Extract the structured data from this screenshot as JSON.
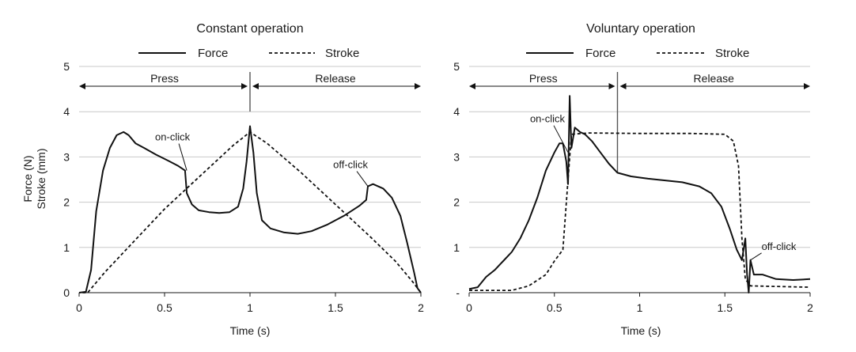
{
  "chart_data": [
    {
      "type": "line",
      "title": "Constant operation",
      "xlabel": "Time (s)",
      "ylabel": [
        "Force (N)",
        "Stroke (mm)"
      ],
      "xlim": [
        0,
        2
      ],
      "ylim": [
        0,
        5
      ],
      "x_ticks": [
        "0",
        "0.5",
        "1",
        "1.5",
        "2"
      ],
      "y_ticks": [
        "0",
        "1",
        "2",
        "3",
        "4",
        "5"
      ],
      "grid": true,
      "legend_position": "top",
      "legend": [
        {
          "label": "Force",
          "style": "solid"
        },
        {
          "label": "Stroke",
          "style": "dashed"
        }
      ],
      "phases": {
        "press_label": "Press",
        "release_label": "Release",
        "start": 0,
        "divider": 1.0,
        "end": 2
      },
      "series": [
        {
          "name": "Force",
          "style": "solid",
          "points": [
            [
              0,
              0
            ],
            [
              0.04,
              0.02
            ],
            [
              0.07,
              0.5
            ],
            [
              0.1,
              1.8
            ],
            [
              0.14,
              2.7
            ],
            [
              0.18,
              3.2
            ],
            [
              0.22,
              3.48
            ],
            [
              0.26,
              3.55
            ],
            [
              0.29,
              3.48
            ],
            [
              0.33,
              3.3
            ],
            [
              0.38,
              3.2
            ],
            [
              0.45,
              3.05
            ],
            [
              0.52,
              2.92
            ],
            [
              0.58,
              2.8
            ],
            [
              0.62,
              2.7
            ],
            [
              0.63,
              2.2
            ],
            [
              0.66,
              1.95
            ],
            [
              0.7,
              1.82
            ],
            [
              0.76,
              1.78
            ],
            [
              0.82,
              1.76
            ],
            [
              0.88,
              1.78
            ],
            [
              0.93,
              1.9
            ],
            [
              0.96,
              2.3
            ],
            [
              0.98,
              2.9
            ],
            [
              1.0,
              3.68
            ],
            [
              1.02,
              3.1
            ],
            [
              1.04,
              2.2
            ],
            [
              1.07,
              1.6
            ],
            [
              1.12,
              1.42
            ],
            [
              1.2,
              1.33
            ],
            [
              1.28,
              1.3
            ],
            [
              1.36,
              1.36
            ],
            [
              1.45,
              1.5
            ],
            [
              1.55,
              1.7
            ],
            [
              1.64,
              1.92
            ],
            [
              1.68,
              2.05
            ],
            [
              1.69,
              2.35
            ],
            [
              1.72,
              2.4
            ],
            [
              1.78,
              2.3
            ],
            [
              1.83,
              2.1
            ],
            [
              1.88,
              1.7
            ],
            [
              1.92,
              1.1
            ],
            [
              1.96,
              0.45
            ],
            [
              1.98,
              0.1
            ],
            [
              2.0,
              0
            ]
          ]
        },
        {
          "name": "Stroke",
          "style": "dashed",
          "points": [
            [
              0.02,
              0
            ],
            [
              0.05,
              0
            ],
            [
              0.15,
              0.45
            ],
            [
              0.3,
              1.05
            ],
            [
              0.5,
              1.85
            ],
            [
              0.7,
              2.55
            ],
            [
              0.9,
              3.25
            ],
            [
              1.0,
              3.55
            ],
            [
              1.1,
              3.3
            ],
            [
              1.3,
              2.65
            ],
            [
              1.5,
              1.95
            ],
            [
              1.7,
              1.25
            ],
            [
              1.85,
              0.7
            ],
            [
              1.95,
              0.25
            ],
            [
              2.0,
              0
            ]
          ]
        }
      ],
      "annotations": [
        {
          "text": "on-click",
          "at": [
            0.63,
            2.7
          ]
        },
        {
          "text": "off-click",
          "at": [
            1.69,
            2.35
          ]
        }
      ]
    },
    {
      "type": "line",
      "title": "Voluntary operation",
      "xlabel": "Time (s)",
      "xlim": [
        0,
        2
      ],
      "ylim": [
        0,
        5
      ],
      "x_ticks": [
        "0",
        "0.5",
        "1",
        "1.5",
        "2"
      ],
      "y_ticks": [
        "-",
        "1",
        "2",
        "3",
        "4",
        "5"
      ],
      "grid": true,
      "legend_position": "top",
      "legend": [
        {
          "label": "Force",
          "style": "solid"
        },
        {
          "label": "Stroke",
          "style": "dashed"
        }
      ],
      "phases": {
        "press_label": "Press",
        "release_label": "Release",
        "start": 0,
        "divider": 0.87,
        "end": 2
      },
      "series": [
        {
          "name": "Force",
          "style": "solid",
          "points": [
            [
              0,
              0.08
            ],
            [
              0.05,
              0.12
            ],
            [
              0.1,
              0.35
            ],
            [
              0.15,
              0.5
            ],
            [
              0.2,
              0.7
            ],
            [
              0.25,
              0.9
            ],
            [
              0.3,
              1.2
            ],
            [
              0.35,
              1.6
            ],
            [
              0.4,
              2.1
            ],
            [
              0.45,
              2.7
            ],
            [
              0.5,
              3.1
            ],
            [
              0.53,
              3.3
            ],
            [
              0.55,
              3.3
            ],
            [
              0.57,
              2.9
            ],
            [
              0.58,
              2.4
            ],
            [
              0.59,
              4.35
            ],
            [
              0.6,
              3.2
            ],
            [
              0.62,
              3.65
            ],
            [
              0.65,
              3.55
            ],
            [
              0.68,
              3.5
            ],
            [
              0.72,
              3.35
            ],
            [
              0.77,
              3.1
            ],
            [
              0.82,
              2.85
            ],
            [
              0.87,
              2.65
            ],
            [
              0.95,
              2.57
            ],
            [
              1.05,
              2.52
            ],
            [
              1.15,
              2.48
            ],
            [
              1.25,
              2.44
            ],
            [
              1.35,
              2.35
            ],
            [
              1.42,
              2.2
            ],
            [
              1.48,
              1.9
            ],
            [
              1.53,
              1.4
            ],
            [
              1.57,
              0.95
            ],
            [
              1.6,
              0.72
            ],
            [
              1.62,
              1.2
            ],
            [
              1.63,
              0.4
            ],
            [
              1.64,
              0.0
            ],
            [
              1.65,
              0.72
            ],
            [
              1.67,
              0.4
            ],
            [
              1.72,
              0.4
            ],
            [
              1.8,
              0.3
            ],
            [
              1.9,
              0.28
            ],
            [
              2.0,
              0.3
            ]
          ]
        },
        {
          "name": "Stroke",
          "style": "dashed",
          "points": [
            [
              0,
              0.05
            ],
            [
              0.25,
              0.05
            ],
            [
              0.35,
              0.15
            ],
            [
              0.45,
              0.4
            ],
            [
              0.5,
              0.7
            ],
            [
              0.55,
              0.95
            ],
            [
              0.58,
              2.5
            ],
            [
              0.6,
              3.5
            ],
            [
              0.7,
              3.53
            ],
            [
              1.0,
              3.52
            ],
            [
              1.3,
              3.52
            ],
            [
              1.5,
              3.5
            ],
            [
              1.55,
              3.35
            ],
            [
              1.58,
              2.8
            ],
            [
              1.6,
              1.2
            ],
            [
              1.62,
              0.3
            ],
            [
              1.65,
              0.15
            ],
            [
              2.0,
              0.12
            ]
          ]
        }
      ],
      "annotations": [
        {
          "text": "on-click",
          "at": [
            0.58,
            3.1
          ]
        },
        {
          "text": "off-click",
          "at": [
            1.65,
            0.72
          ]
        }
      ]
    }
  ]
}
